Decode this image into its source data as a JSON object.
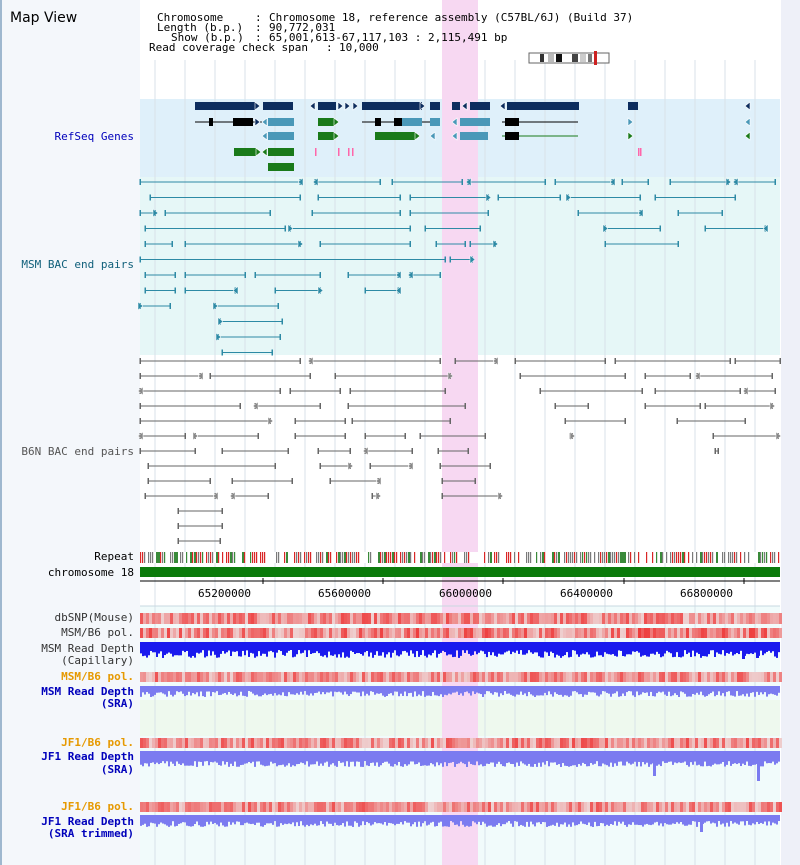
{
  "title": "Map View",
  "header": {
    "chromosome_key": "Chromosome",
    "chromosome_val": "Chromosome 18, reference assembly (C57BL/6J) (Build 37)",
    "length_key": "Length (b.p.)",
    "length_val": "90,772,031",
    "show_key": "Show (b.p.)",
    "show_val": "65,001,613-67,117,103 : 2,115,491 bp",
    "coverage_key": "Read coverage check span",
    "coverage_val": "10,000"
  },
  "tracks": {
    "refseq": "RefSeq Genes",
    "msm_bac": "MSM BAC end pairs",
    "b6n_bac": "B6N BAC end pairs",
    "repeat": "Repeat",
    "chromosome": "chromosome 18",
    "dbsnp": "dbSNP(Mouse)",
    "msm_b6_pol": "MSM/B6 pol.",
    "msm_depth_cap_1": "MSM Read Depth",
    "msm_depth_cap_2": "(Capillary)",
    "msm_b6_pol_sra": "MSM/B6 pol.",
    "msm_depth_sra_1": "MSM Read Depth",
    "msm_depth_sra_2": "(SRA)",
    "jf1_b6_pol": "JF1/B6 pol.",
    "jf1_depth_1": "JF1 Read Depth",
    "jf1_depth_2": "(SRA)",
    "jf1_b6_pol_trim": "JF1/B6 pol.",
    "jf1_trim_1": "JF1 Read Depth",
    "jf1_trim_2": "(SRA trimmed)"
  },
  "axis": {
    "ticks": [
      "65200000",
      "65600000",
      "66000000",
      "66400000",
      "66800000"
    ]
  },
  "colors": {
    "refseq_bg": "#dff0fa",
    "bac_bg": "#e6f7f7",
    "highlight": "#f7d8f2",
    "gene_navy": "#0d2d5e",
    "gene_teal": "#4a98b8",
    "gene_green": "#1a7a1a",
    "msm_line": "#2d8aa5",
    "b6n_line": "#666666",
    "chrom_green": "#0b7a0b",
    "depth_blue": "#1a1aee",
    "sra_blue": "#7b7bf0",
    "label_blue": "#0000bb",
    "label_orange": "#e69900"
  }
}
